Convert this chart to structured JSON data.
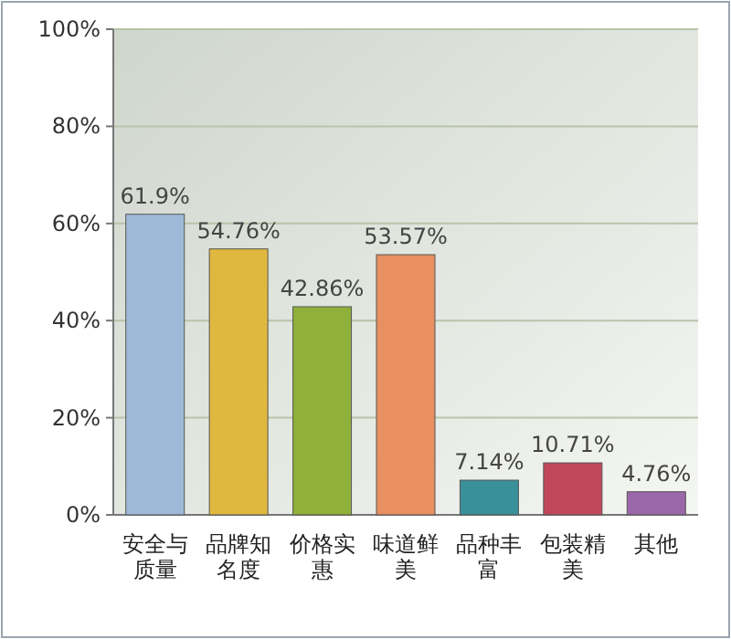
{
  "chart_data": {
    "type": "bar",
    "categories": [
      "安全与质量",
      "品牌知名度",
      "价格实惠",
      "味道鲜美",
      "品种丰富",
      "包装精美",
      "其他"
    ],
    "values": [
      61.9,
      54.76,
      42.86,
      53.57,
      7.14,
      10.71,
      4.76
    ],
    "value_labels": [
      "61.9%",
      "54.76%",
      "42.86%",
      "53.57%",
      "7.14%",
      "10.71%",
      "4.76%"
    ],
    "colors": [
      "#9fbad8",
      "#e0b840",
      "#8fb03a",
      "#e89060",
      "#3a9098",
      "#c04858",
      "#9a68a8"
    ],
    "ylim": [
      0,
      100
    ],
    "yticks": [
      {
        "value": 0,
        "label": "0%"
      },
      {
        "value": 20,
        "label": "20%"
      },
      {
        "value": 40,
        "label": "40%"
      },
      {
        "value": 60,
        "label": "60%"
      },
      {
        "value": 80,
        "label": "80%"
      },
      {
        "value": 100,
        "label": "100%"
      }
    ],
    "grid": "y"
  }
}
